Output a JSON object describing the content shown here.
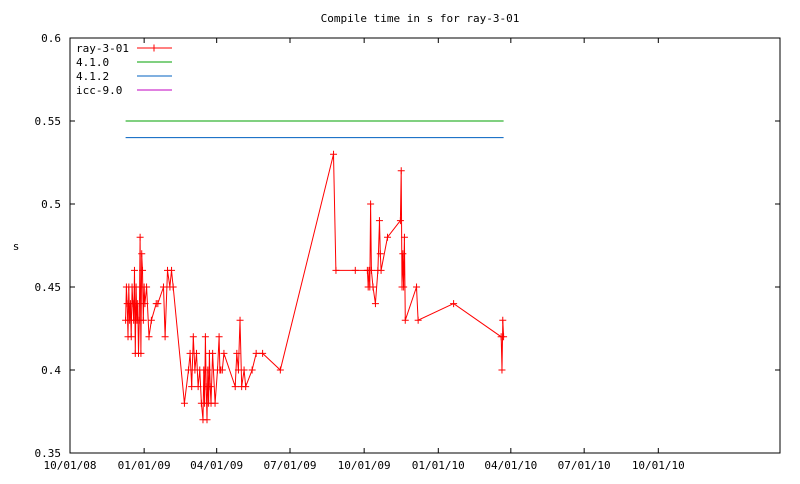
{
  "chart_data": {
    "type": "line",
    "title": "Compile time in s for ray-3-01",
    "xlabel": "",
    "ylabel": "s",
    "x_scale": "date",
    "xlim": [
      "2008-10-01",
      "2011-03-01"
    ],
    "ylim": [
      0.35,
      0.6
    ],
    "yticks": [
      0.35,
      0.4,
      0.45,
      0.5,
      0.55,
      0.6
    ],
    "ytick_labels": [
      "0.35",
      "0.4",
      "0.45",
      "0.5",
      "0.55",
      "0.6"
    ],
    "xticks": [
      "2008-10-01",
      "2009-01-01",
      "2009-04-01",
      "2009-07-01",
      "2009-10-01",
      "2010-01-01",
      "2010-04-01",
      "2010-07-01",
      "2010-10-01"
    ],
    "xtick_labels": [
      "10/01/08",
      "01/01/09",
      "04/01/09",
      "07/01/09",
      "10/01/09",
      "01/01/10",
      "04/01/10",
      "07/01/10",
      "10/01/10"
    ],
    "grid": false,
    "legend_position": "top-left",
    "series": [
      {
        "name": "ray-3-01",
        "color": "#ff0000",
        "marker": "plus",
        "points": [
          [
            "2008-12-09",
            0.43
          ],
          [
            "2008-12-10",
            0.45
          ],
          [
            "2008-12-11",
            0.44
          ],
          [
            "2008-12-12",
            0.42
          ],
          [
            "2008-12-13",
            0.45
          ],
          [
            "2008-12-14",
            0.43
          ],
          [
            "2008-12-15",
            0.44
          ],
          [
            "2008-12-16",
            0.42
          ],
          [
            "2008-12-17",
            0.45
          ],
          [
            "2008-12-18",
            0.44
          ],
          [
            "2008-12-19",
            0.43
          ],
          [
            "2008-12-20",
            0.46
          ],
          [
            "2008-12-21",
            0.41
          ],
          [
            "2008-12-22",
            0.45
          ],
          [
            "2008-12-23",
            0.43
          ],
          [
            "2008-12-24",
            0.44
          ],
          [
            "2008-12-25",
            0.41
          ],
          [
            "2008-12-26",
            0.43
          ],
          [
            "2008-12-27",
            0.48
          ],
          [
            "2008-12-28",
            0.41
          ],
          [
            "2008-12-29",
            0.47
          ],
          [
            "2008-12-30",
            0.46
          ],
          [
            "2008-12-31",
            0.43
          ],
          [
            "2009-01-01",
            0.45
          ],
          [
            "2009-01-02",
            0.44
          ],
          [
            "2009-01-04",
            0.45
          ],
          [
            "2009-01-07",
            0.42
          ],
          [
            "2009-01-10",
            0.43
          ],
          [
            "2009-01-16",
            0.44
          ],
          [
            "2009-01-18",
            0.44
          ],
          [
            "2009-01-25",
            0.45
          ],
          [
            "2009-01-27",
            0.42
          ],
          [
            "2009-01-30",
            0.46
          ],
          [
            "2009-02-02",
            0.45
          ],
          [
            "2009-02-04",
            0.46
          ],
          [
            "2009-02-06",
            0.45
          ],
          [
            "2009-02-20",
            0.38
          ],
          [
            "2009-02-25",
            0.4
          ],
          [
            "2009-02-27",
            0.41
          ],
          [
            "2009-03-01",
            0.39
          ],
          [
            "2009-03-03",
            0.42
          ],
          [
            "2009-03-05",
            0.4
          ],
          [
            "2009-03-07",
            0.41
          ],
          [
            "2009-03-09",
            0.39
          ],
          [
            "2009-03-11",
            0.4
          ],
          [
            "2009-03-13",
            0.38
          ],
          [
            "2009-03-15",
            0.37
          ],
          [
            "2009-03-16",
            0.4
          ],
          [
            "2009-03-17",
            0.38
          ],
          [
            "2009-03-18",
            0.42
          ],
          [
            "2009-03-19",
            0.39
          ],
          [
            "2009-03-20",
            0.37
          ],
          [
            "2009-03-21",
            0.4
          ],
          [
            "2009-03-22",
            0.38
          ],
          [
            "2009-03-23",
            0.41
          ],
          [
            "2009-03-24",
            0.39
          ],
          [
            "2009-03-25",
            0.38
          ],
          [
            "2009-03-27",
            0.41
          ],
          [
            "2009-03-30",
            0.38
          ],
          [
            "2009-04-02",
            0.4
          ],
          [
            "2009-04-04",
            0.42
          ],
          [
            "2009-04-05",
            0.4
          ],
          [
            "2009-04-06",
            0.4
          ],
          [
            "2009-04-08",
            0.4
          ],
          [
            "2009-04-10",
            0.41
          ],
          [
            "2009-04-24",
            0.39
          ],
          [
            "2009-04-26",
            0.41
          ],
          [
            "2009-04-28",
            0.4
          ],
          [
            "2009-04-30",
            0.43
          ],
          [
            "2009-05-02",
            0.39
          ],
          [
            "2009-05-05",
            0.4
          ],
          [
            "2009-05-07",
            0.39
          ],
          [
            "2009-05-15",
            0.4
          ],
          [
            "2009-05-20",
            0.41
          ],
          [
            "2009-05-28",
            0.41
          ],
          [
            "2009-06-19",
            0.4
          ],
          [
            "2009-08-24",
            0.53
          ],
          [
            "2009-08-27",
            0.46
          ],
          [
            "2009-09-20",
            0.46
          ],
          [
            "2009-10-05",
            0.46
          ],
          [
            "2009-10-06",
            0.45
          ],
          [
            "2009-10-07",
            0.46
          ],
          [
            "2009-10-08",
            0.45
          ],
          [
            "2009-10-09",
            0.5
          ],
          [
            "2009-10-10",
            0.46
          ],
          [
            "2009-10-12",
            0.45
          ],
          [
            "2009-10-15",
            0.44
          ],
          [
            "2009-10-18",
            0.46
          ],
          [
            "2009-10-20",
            0.49
          ],
          [
            "2009-10-21",
            0.47
          ],
          [
            "2009-10-22",
            0.46
          ],
          [
            "2009-10-30",
            0.48
          ],
          [
            "2009-11-15",
            0.49
          ],
          [
            "2009-11-16",
            0.52
          ],
          [
            "2009-11-17",
            0.45
          ],
          [
            "2009-11-18",
            0.47
          ],
          [
            "2009-11-19",
            0.45
          ],
          [
            "2009-11-20",
            0.48
          ],
          [
            "2009-11-21",
            0.43
          ],
          [
            "2009-12-05",
            0.45
          ],
          [
            "2009-12-07",
            0.43
          ],
          [
            "2010-01-20",
            0.44
          ],
          [
            "2010-03-20",
            0.42
          ],
          [
            "2010-03-21",
            0.4
          ],
          [
            "2010-03-22",
            0.43
          ],
          [
            "2010-03-23",
            0.42
          ]
        ]
      },
      {
        "name": "4.1.0",
        "color": "#00a000",
        "points": [
          [
            "2008-12-09",
            0.55
          ],
          [
            "2010-03-23",
            0.55
          ]
        ]
      },
      {
        "name": "4.1.2",
        "color": "#0060c0",
        "points": [
          [
            "2008-12-09",
            0.54
          ],
          [
            "2010-03-23",
            0.54
          ]
        ]
      },
      {
        "name": "icc-9.0",
        "color": "#c000c0",
        "points": []
      }
    ]
  }
}
